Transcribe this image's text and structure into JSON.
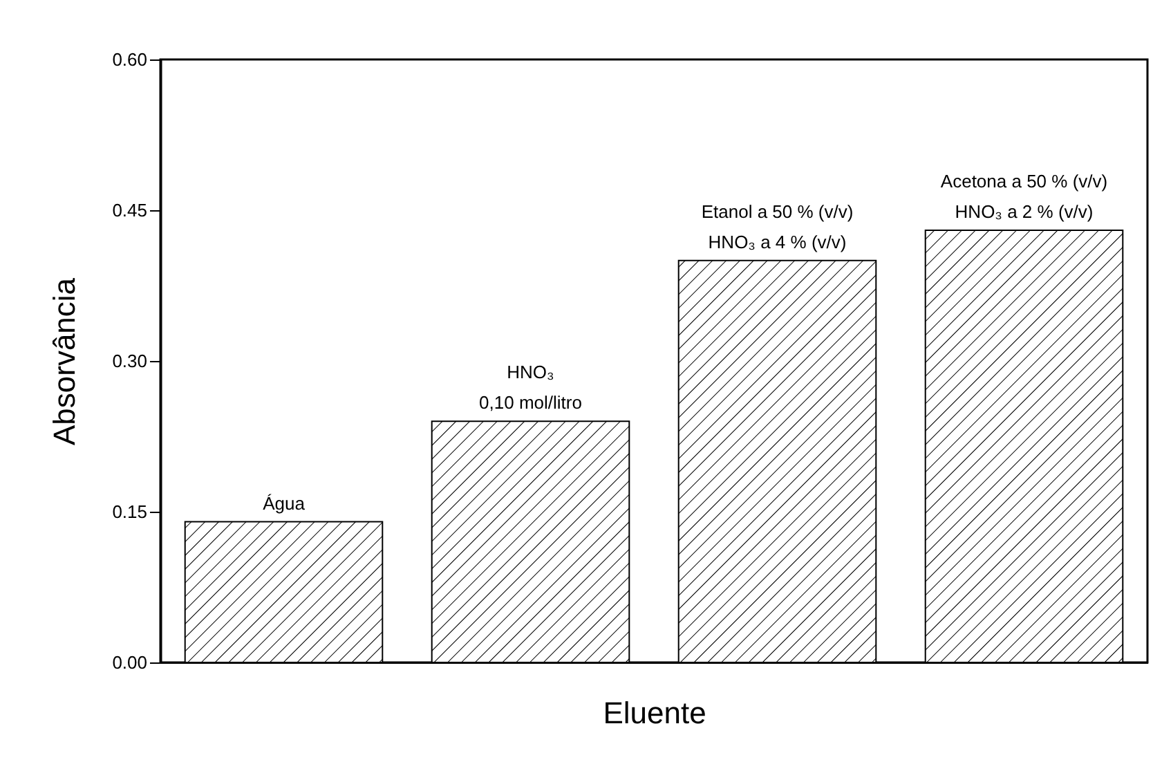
{
  "chart_data": {
    "type": "bar",
    "xlabel": "Eluente",
    "ylabel": "Absorvância",
    "categories": [
      null,
      null,
      null,
      null
    ],
    "values": [
      0.14,
      0.24,
      0.4,
      0.43
    ],
    "color": "#000000",
    "ylim": [
      0,
      0.6
    ],
    "yticks": [
      {
        "value": 0,
        "label": "0.00"
      },
      {
        "value": 0.15,
        "label": "0.15"
      },
      {
        "value": 0.3,
        "label": "0.30"
      },
      {
        "value": 0.45,
        "label": "0.45"
      },
      {
        "value": 0.6,
        "label": "0.60"
      }
    ],
    "tick_labels": "y",
    "annotations": [
      "Água",
      "HNO₃\n0,10 mol/litro",
      "Etanol a 50 % (v/v)\nHNO₃ a 4 % (v/v)",
      "Acetona a 50 % (v/v)\nHNO₃ a 2 % (v/v)"
    ]
  }
}
